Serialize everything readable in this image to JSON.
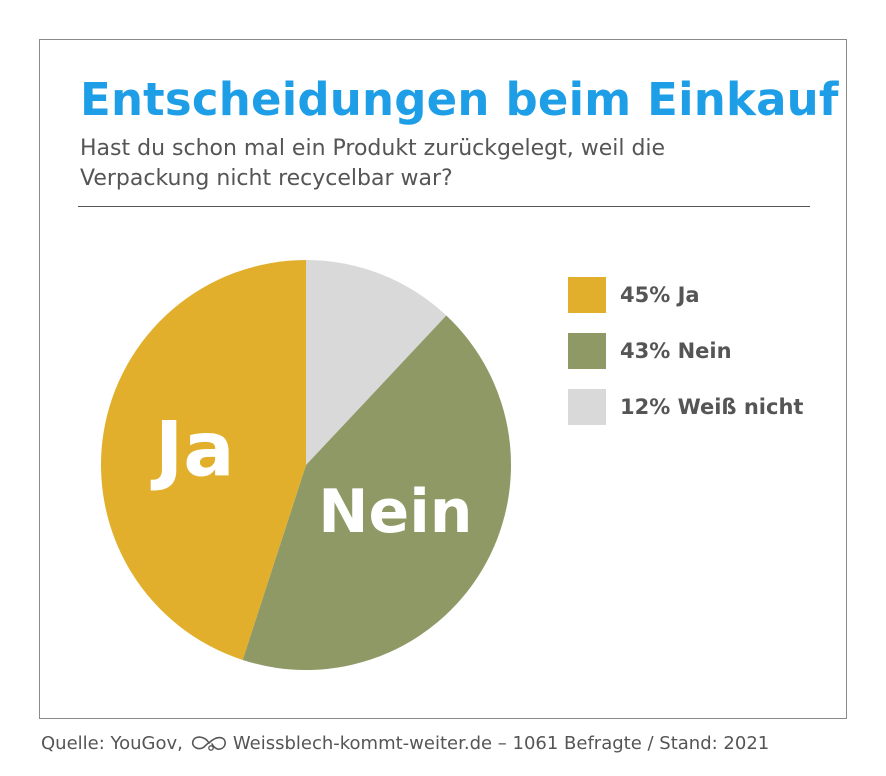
{
  "header": {
    "title": "Entscheidungen beim Einkauf",
    "subtitle": "Hast du schon mal ein Produkt zurückgelegt, weil die Verpackung nicht recycelbar war?"
  },
  "chart_data": {
    "type": "pie",
    "categories": [
      "Ja",
      "Nein",
      "Weiß nicht"
    ],
    "values": [
      45,
      43,
      12
    ],
    "unit": "%",
    "colors": [
      "#e1af2b",
      "#8f9965",
      "#d9d9d9"
    ],
    "slice_labels": [
      "Ja",
      "Nein",
      ""
    ],
    "legend": {
      "placement": "right",
      "entries": [
        "45% Ja",
        "43% Nein",
        "12% Weiß nicht"
      ]
    }
  },
  "footer": {
    "source_prefix": "Quelle: YouGov,",
    "logo_icon": "infinity-loop-icon",
    "source_rest": "Weissblech-kommt-weiter.de – 1061 Befragte / Stand: 2021"
  }
}
